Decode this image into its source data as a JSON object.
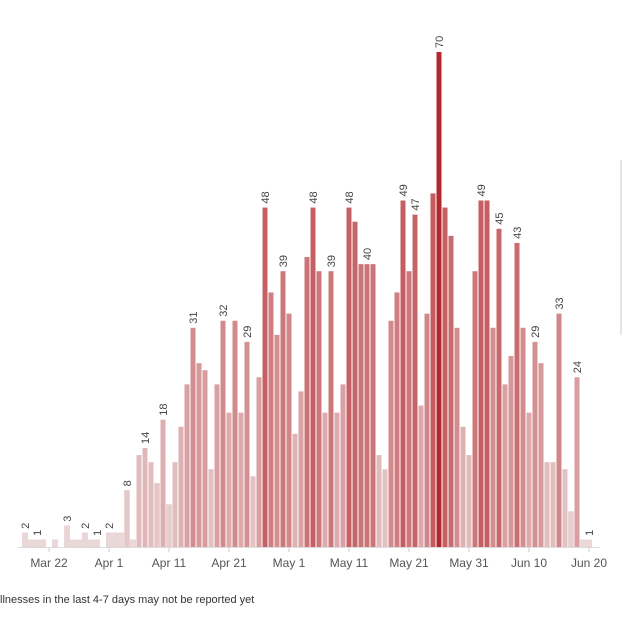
{
  "chart_data": {
    "type": "bar",
    "categories": [
      null,
      null,
      null,
      null,
      "Mar 22",
      null,
      null,
      null,
      null,
      null,
      null,
      null,
      null,
      null,
      "Apr 1",
      null,
      null,
      null,
      null,
      null,
      null,
      null,
      null,
      null,
      "Apr 11",
      null,
      null,
      null,
      null,
      null,
      null,
      null,
      null,
      null,
      "Apr 21",
      null,
      null,
      null,
      null,
      null,
      null,
      null,
      null,
      null,
      "May 1",
      null,
      null,
      null,
      null,
      null,
      null,
      null,
      null,
      null,
      "May 11",
      null,
      null,
      null,
      null,
      null,
      null,
      null,
      null,
      null,
      "May 21",
      null,
      null,
      null,
      null,
      null,
      null,
      null,
      null,
      null,
      "May 31",
      null,
      null,
      null,
      null,
      null,
      null,
      null,
      null,
      null,
      "Jun 10",
      null,
      null,
      null,
      null,
      null,
      null,
      null,
      null,
      null,
      "Jun 20"
    ],
    "values": [
      2,
      1,
      1,
      1,
      0,
      1,
      0,
      3,
      1,
      1,
      2,
      1,
      1,
      0,
      2,
      2,
      2,
      8,
      1,
      13,
      14,
      12,
      9,
      18,
      6,
      12,
      17,
      23,
      31,
      26,
      25,
      11,
      23,
      32,
      19,
      32,
      19,
      29,
      10,
      24,
      48,
      36,
      30,
      39,
      33,
      16,
      22,
      41,
      48,
      39,
      19,
      39,
      19,
      23,
      48,
      46,
      40,
      40,
      40,
      13,
      11,
      32,
      36,
      49,
      39,
      47,
      20,
      33,
      50,
      70,
      48,
      44,
      31,
      17,
      13,
      39,
      49,
      49,
      31,
      45,
      23,
      27,
      43,
      31,
      19,
      29,
      26,
      12,
      12,
      33,
      11,
      5,
      24,
      1,
      1
    ],
    "value_labels": [
      2,
      null,
      1,
      null,
      null,
      null,
      null,
      3,
      null,
      null,
      2,
      null,
      1,
      null,
      2,
      null,
      null,
      8,
      null,
      null,
      14,
      null,
      null,
      18,
      null,
      null,
      null,
      null,
      31,
      null,
      null,
      null,
      null,
      32,
      null,
      null,
      null,
      29,
      null,
      null,
      48,
      null,
      null,
      39,
      null,
      null,
      null,
      null,
      48,
      null,
      null,
      39,
      null,
      null,
      48,
      null,
      null,
      40,
      null,
      null,
      null,
      null,
      null,
      49,
      null,
      47,
      null,
      null,
      null,
      70,
      null,
      null,
      null,
      null,
      null,
      null,
      49,
      null,
      null,
      45,
      null,
      null,
      43,
      null,
      null,
      29,
      null,
      null,
      null,
      33,
      null,
      null,
      24,
      null,
      1
    ],
    "ylim": [
      0,
      70
    ],
    "color_scale": [
      "#ecdcdc",
      "#b3282d"
    ],
    "footnote": "llnesses in the last 4-7 days may not be reported yet"
  }
}
